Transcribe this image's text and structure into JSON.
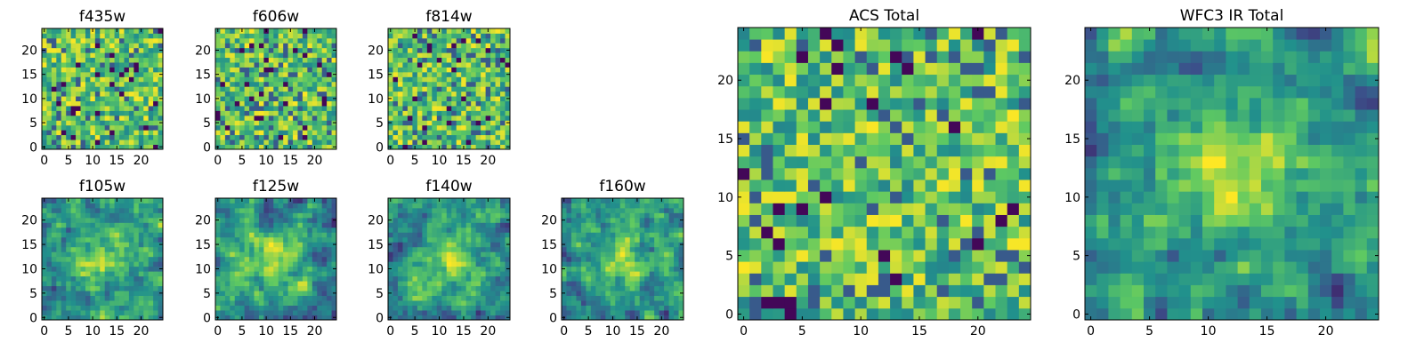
{
  "figure": {
    "colormap": [
      "#440154",
      "#3b528b",
      "#21918c",
      "#5ec962",
      "#fde725"
    ],
    "axis_color": "#000000"
  },
  "chart_data": [
    {
      "type": "heatmap",
      "title": "f435w",
      "grid": false,
      "rows": 25,
      "cols": 25,
      "seed": 11,
      "texture": "noise",
      "xticks": [
        "0",
        "5",
        "10",
        "15",
        "20"
      ],
      "yticks": [
        "0",
        "5",
        "10",
        "15",
        "20"
      ],
      "xlim": [
        0,
        25
      ],
      "ylim": [
        0,
        25
      ]
    },
    {
      "type": "heatmap",
      "title": "f606w",
      "grid": false,
      "rows": 25,
      "cols": 25,
      "seed": 23,
      "texture": "noise",
      "xticks": [
        "0",
        "5",
        "10",
        "15",
        "20"
      ],
      "yticks": [
        "0",
        "5",
        "10",
        "15",
        "20"
      ],
      "xlim": [
        0,
        25
      ],
      "ylim": [
        0,
        25
      ]
    },
    {
      "type": "heatmap",
      "title": "f814w",
      "grid": false,
      "rows": 25,
      "cols": 25,
      "seed": 37,
      "texture": "noise",
      "xticks": [
        "0",
        "5",
        "10",
        "15",
        "20"
      ],
      "yticks": [
        "0",
        "5",
        "10",
        "15",
        "20"
      ],
      "xlim": [
        0,
        25
      ],
      "ylim": [
        0,
        25
      ]
    },
    {
      "type": "heatmap",
      "title": "f105w",
      "grid": false,
      "rows": 25,
      "cols": 25,
      "seed": 41,
      "texture": "smooth",
      "xticks": [
        "0",
        "5",
        "10",
        "15",
        "20"
      ],
      "yticks": [
        "0",
        "5",
        "10",
        "15",
        "20"
      ],
      "xlim": [
        0,
        25
      ],
      "ylim": [
        0,
        25
      ]
    },
    {
      "type": "heatmap",
      "title": "f125w",
      "grid": false,
      "rows": 25,
      "cols": 25,
      "seed": 53,
      "texture": "smooth",
      "xticks": [
        "0",
        "5",
        "10",
        "15",
        "20"
      ],
      "yticks": [
        "0",
        "5",
        "10",
        "15",
        "20"
      ],
      "xlim": [
        0,
        25
      ],
      "ylim": [
        0,
        25
      ]
    },
    {
      "type": "heatmap",
      "title": "f140w",
      "grid": false,
      "rows": 25,
      "cols": 25,
      "seed": 67,
      "texture": "smooth",
      "xticks": [
        "0",
        "5",
        "10",
        "15",
        "20"
      ],
      "yticks": [
        "0",
        "5",
        "10",
        "15",
        "20"
      ],
      "xlim": [
        0,
        25
      ],
      "ylim": [
        0,
        25
      ]
    },
    {
      "type": "heatmap",
      "title": "f160w",
      "grid": false,
      "rows": 25,
      "cols": 25,
      "seed": 79,
      "texture": "smooth",
      "xticks": [
        "0",
        "5",
        "10",
        "15",
        "20"
      ],
      "yticks": [
        "0",
        "5",
        "10",
        "15",
        "20"
      ],
      "xlim": [
        0,
        25
      ],
      "ylim": [
        0,
        25
      ]
    },
    {
      "type": "heatmap",
      "title": "ACS Total",
      "grid": false,
      "rows": 25,
      "cols": 25,
      "seed": 97,
      "texture": "noise",
      "xticks": [
        "0",
        "5",
        "10",
        "15",
        "20"
      ],
      "yticks": [
        "0",
        "5",
        "10",
        "15",
        "20"
      ],
      "xlim": [
        0,
        25
      ],
      "ylim": [
        0,
        25
      ]
    },
    {
      "type": "heatmap",
      "title": "WFC3 IR Total",
      "grid": false,
      "rows": 25,
      "cols": 25,
      "seed": 113,
      "texture": "smooth",
      "xticks": [
        "0",
        "5",
        "10",
        "15",
        "20"
      ],
      "yticks": [
        "0",
        "5",
        "10",
        "15",
        "20"
      ],
      "xlim": [
        0,
        25
      ],
      "ylim": [
        0,
        25
      ]
    }
  ]
}
